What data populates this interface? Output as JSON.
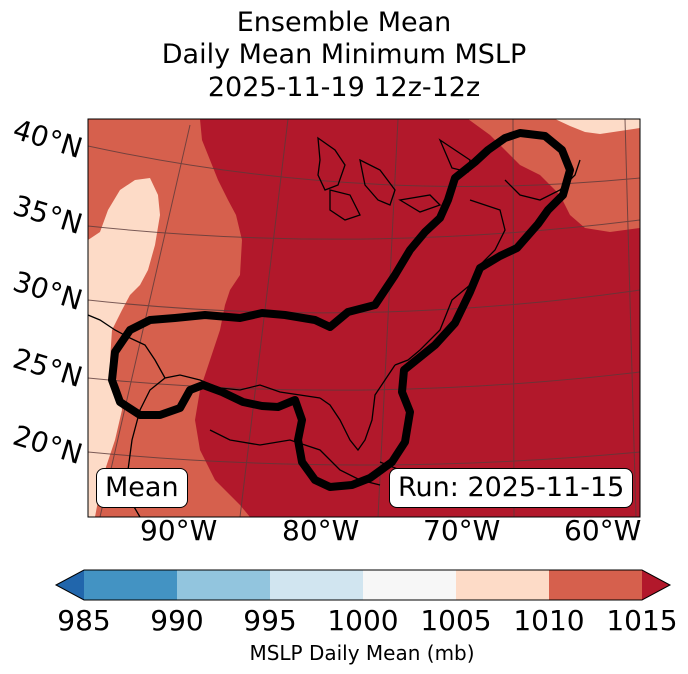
{
  "title": {
    "line1": "Ensemble Mean",
    "line2": "Daily Mean Minimum MSLP",
    "line3": "2025-11-19 12z-12z"
  },
  "map": {
    "lat_labels": [
      "40°N",
      "35°N",
      "30°N",
      "25°N",
      "20°N"
    ],
    "lon_labels": [
      "90°W",
      "80°W",
      "70°W",
      "60°W"
    ],
    "mean_label": "Mean",
    "run_label": "Run: 2025-11-15",
    "field_colors": {
      "1015_plus": "#b2182b",
      "1010_1015": "#d6604d",
      "1005_1010": "#fddbc7"
    }
  },
  "colorbar": {
    "ticks": [
      "985",
      "990",
      "995",
      "1000",
      "1005",
      "1010",
      "1015"
    ],
    "label": "MSLP Daily Mean (mb)",
    "colors": [
      "#2166ac",
      "#4393c3",
      "#92c5de",
      "#d1e5f0",
      "#f7f7f7",
      "#fddbc7",
      "#d6604d",
      "#b2182b"
    ]
  }
}
